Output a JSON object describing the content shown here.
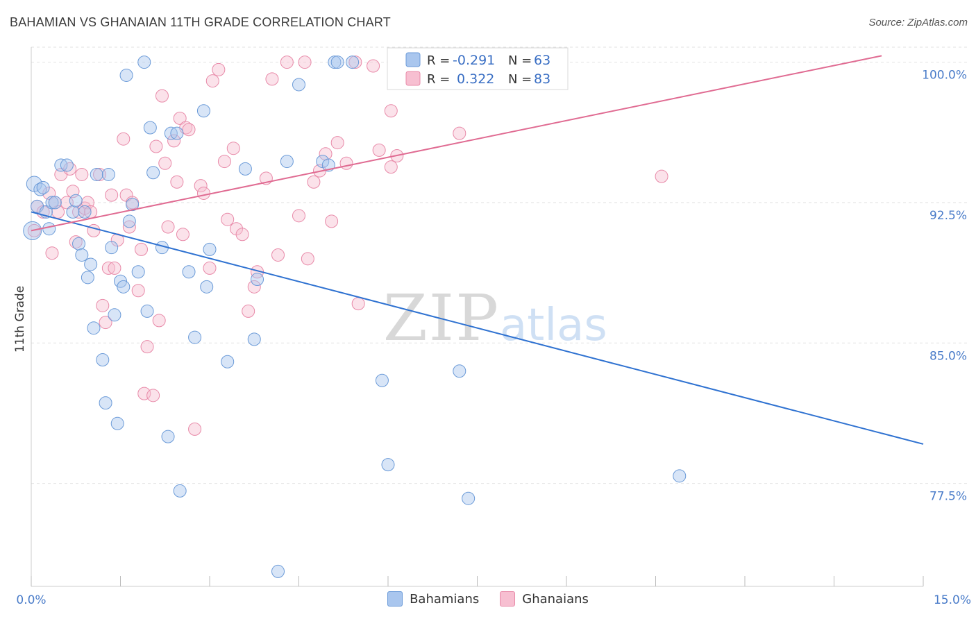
{
  "header": {
    "title": "BAHAMIAN VS GHANAIAN 11TH GRADE CORRELATION CHART",
    "source": "Source: ZipAtlas.com"
  },
  "watermark": {
    "zip": "ZIP",
    "atlas": "atlas"
  },
  "colors": {
    "blue_fill": "#a9c6ee",
    "blue_stroke": "#6a9ad8",
    "blue_line": "#2f72d1",
    "pink_fill": "#f7bfd1",
    "pink_stroke": "#e889a8",
    "pink_line": "#e06b92"
  },
  "chart_data": {
    "type": "scatter",
    "title": "BAHAMIAN VS GHANAIAN 11TH GRADE CORRELATION CHART",
    "ylabel": "11th Grade",
    "xlabel": "",
    "xlim": [
      0,
      15
    ],
    "ylim": [
      72,
      100.8
    ],
    "x_tick_labels": [
      "0.0%",
      "15.0%"
    ],
    "y_ticks": [
      77.5,
      85.0,
      92.5,
      100.0
    ],
    "y_tick_labels": [
      "77.5%",
      "85.0%",
      "92.5%",
      "100.0%"
    ],
    "grid": true,
    "legend_position": "top-center",
    "legend_box": [
      {
        "r_label": "R =",
        "r_value": "-0.291",
        "n_label": "N =",
        "n_value": "63"
      },
      {
        "r_label": "R =",
        "r_value": "0.322",
        "n_label": "N =",
        "n_value": "83"
      }
    ],
    "series": [
      {
        "name": "Bahamians",
        "trend": {
          "x": [
            0,
            15
          ],
          "y": [
            92.0,
            79.6
          ]
        },
        "points": [
          [
            0.05,
            93.5
          ],
          [
            0.1,
            92.3
          ],
          [
            0.15,
            93.2
          ],
          [
            0.2,
            93.3
          ],
          [
            0.25,
            92.0
          ],
          [
            0.3,
            91.1
          ],
          [
            0.35,
            92.5
          ],
          [
            0.4,
            92.5
          ],
          [
            0.5,
            94.5
          ],
          [
            0.6,
            94.5
          ],
          [
            0.7,
            92.0
          ],
          [
            0.75,
            92.6
          ],
          [
            0.8,
            90.3
          ],
          [
            0.85,
            89.7
          ],
          [
            0.9,
            92.0
          ],
          [
            0.95,
            88.5
          ],
          [
            1.0,
            89.2
          ],
          [
            1.05,
            85.8
          ],
          [
            1.1,
            94.0
          ],
          [
            1.2,
            84.1
          ],
          [
            1.25,
            81.8
          ],
          [
            1.3,
            94.0
          ],
          [
            1.35,
            90.1
          ],
          [
            1.4,
            86.5
          ],
          [
            1.45,
            80.7
          ],
          [
            1.5,
            88.3
          ],
          [
            1.55,
            88.0
          ],
          [
            1.6,
            99.3
          ],
          [
            1.65,
            91.5
          ],
          [
            1.7,
            92.4
          ],
          [
            1.8,
            88.8
          ],
          [
            1.9,
            100.0
          ],
          [
            1.95,
            86.7
          ],
          [
            2.0,
            96.5
          ],
          [
            2.05,
            94.1
          ],
          [
            2.2,
            90.1
          ],
          [
            2.3,
            80.0
          ],
          [
            2.35,
            96.2
          ],
          [
            2.45,
            96.2
          ],
          [
            2.5,
            77.1
          ],
          [
            2.65,
            88.8
          ],
          [
            2.75,
            85.3
          ],
          [
            2.9,
            97.4
          ],
          [
            2.95,
            88.0
          ],
          [
            3.0,
            90.0
          ],
          [
            3.3,
            84.0
          ],
          [
            3.6,
            94.3
          ],
          [
            3.75,
            85.2
          ],
          [
            3.8,
            88.4
          ],
          [
            4.15,
            72.8
          ],
          [
            4.3,
            94.7
          ],
          [
            4.5,
            98.8
          ],
          [
            4.9,
            94.7
          ],
          [
            5.0,
            94.5
          ],
          [
            5.1,
            100.0
          ],
          [
            5.15,
            100.0
          ],
          [
            5.4,
            100.0
          ],
          [
            5.9,
            83.0
          ],
          [
            6.0,
            78.5
          ],
          [
            6.1,
            100.0
          ],
          [
            7.2,
            83.5
          ],
          [
            7.35,
            76.7
          ],
          [
            10.9,
            77.9
          ]
        ]
      },
      {
        "name": "Ghanaians",
        "trend": {
          "x": [
            0,
            15
          ],
          "y": [
            91.0,
            100.8
          ]
        },
        "points": [
          [
            0.05,
            91.0
          ],
          [
            0.1,
            92.3
          ],
          [
            0.2,
            92.0
          ],
          [
            0.3,
            93.0
          ],
          [
            0.35,
            89.8
          ],
          [
            0.4,
            92.5
          ],
          [
            0.45,
            92.0
          ],
          [
            0.5,
            94.0
          ],
          [
            0.6,
            92.5
          ],
          [
            0.65,
            94.3
          ],
          [
            0.7,
            93.1
          ],
          [
            0.75,
            90.4
          ],
          [
            0.8,
            92.0
          ],
          [
            0.85,
            94.0
          ],
          [
            0.9,
            92.2
          ],
          [
            0.95,
            92.5
          ],
          [
            1.0,
            92.0
          ],
          [
            1.05,
            91.0
          ],
          [
            1.15,
            94.0
          ],
          [
            1.2,
            87.0
          ],
          [
            1.25,
            86.1
          ],
          [
            1.3,
            89.0
          ],
          [
            1.35,
            92.9
          ],
          [
            1.4,
            89.0
          ],
          [
            1.45,
            90.5
          ],
          [
            1.55,
            95.9
          ],
          [
            1.6,
            92.9
          ],
          [
            1.65,
            91.2
          ],
          [
            1.7,
            92.5
          ],
          [
            1.8,
            87.8
          ],
          [
            1.85,
            90.0
          ],
          [
            1.9,
            82.3
          ],
          [
            1.95,
            84.8
          ],
          [
            2.05,
            82.2
          ],
          [
            2.1,
            95.5
          ],
          [
            2.15,
            86.2
          ],
          [
            2.2,
            98.2
          ],
          [
            2.25,
            94.6
          ],
          [
            2.3,
            91.2
          ],
          [
            2.4,
            95.8
          ],
          [
            2.45,
            93.6
          ],
          [
            2.5,
            97.0
          ],
          [
            2.55,
            90.8
          ],
          [
            2.6,
            96.5
          ],
          [
            2.65,
            96.4
          ],
          [
            2.75,
            80.4
          ],
          [
            2.85,
            93.4
          ],
          [
            2.9,
            93.0
          ],
          [
            3.0,
            89.0
          ],
          [
            3.05,
            99.0
          ],
          [
            3.15,
            99.6
          ],
          [
            3.25,
            94.7
          ],
          [
            3.3,
            91.6
          ],
          [
            3.4,
            95.4
          ],
          [
            3.45,
            91.1
          ],
          [
            3.55,
            90.8
          ],
          [
            3.65,
            86.7
          ],
          [
            3.75,
            88.0
          ],
          [
            3.8,
            88.8
          ],
          [
            3.95,
            93.8
          ],
          [
            4.05,
            99.1
          ],
          [
            4.15,
            89.7
          ],
          [
            4.3,
            100.0
          ],
          [
            4.5,
            91.8
          ],
          [
            4.6,
            100.0
          ],
          [
            4.65,
            89.5
          ],
          [
            4.75,
            93.6
          ],
          [
            4.85,
            94.2
          ],
          [
            4.95,
            95.1
          ],
          [
            5.05,
            91.5
          ],
          [
            5.15,
            95.7
          ],
          [
            5.3,
            94.6
          ],
          [
            5.45,
            100.0
          ],
          [
            5.5,
            87.1
          ],
          [
            5.75,
            99.8
          ],
          [
            5.85,
            95.3
          ],
          [
            6.05,
            94.4
          ],
          [
            6.15,
            95.0
          ],
          [
            6.05,
            97.4
          ],
          [
            6.45,
            100.0
          ],
          [
            7.2,
            96.2
          ],
          [
            7.25,
            100.0
          ],
          [
            10.6,
            93.9
          ]
        ]
      }
    ]
  },
  "bottom_legend": [
    {
      "label": "Bahamians"
    },
    {
      "label": "Ghanaians"
    }
  ]
}
